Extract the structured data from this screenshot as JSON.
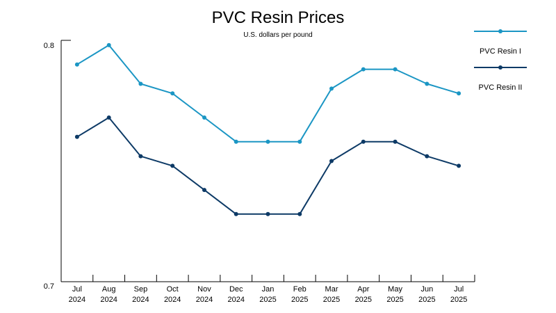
{
  "chart_data": {
    "type": "line",
    "title": "PVC Resin Prices",
    "subtitle": "U.S. dollars per pound",
    "xlabel": "",
    "ylabel": "",
    "categories": [
      [
        "Jul",
        "2024"
      ],
      [
        "Aug",
        "2024"
      ],
      [
        "Sep",
        "2024"
      ],
      [
        "Oct",
        "2024"
      ],
      [
        "Nov",
        "2024"
      ],
      [
        "Dec",
        "2024"
      ],
      [
        "Jan",
        "2025"
      ],
      [
        "Feb",
        "2025"
      ],
      [
        "Mar",
        "2025"
      ],
      [
        "Apr",
        "2025"
      ],
      [
        "May",
        "2025"
      ],
      [
        "Jun",
        "2025"
      ],
      [
        "Jul",
        "2025"
      ]
    ],
    "ylim": [
      0.7,
      0.8
    ],
    "yticks": [
      "0.7",
      "0.8"
    ],
    "grid": false,
    "legend_position": "right",
    "series": [
      {
        "name": "PVC Resin I",
        "color": "#1b96c4",
        "values": [
          0.79,
          0.798,
          0.782,
          0.778,
          0.768,
          0.758,
          0.758,
          0.758,
          0.78,
          0.788,
          0.788,
          0.782,
          0.778
        ]
      },
      {
        "name": "PVC Resin II",
        "color": "#0d3a66",
        "values": [
          0.76,
          0.768,
          0.752,
          0.748,
          0.738,
          0.728,
          0.728,
          0.728,
          0.75,
          0.758,
          0.758,
          0.752,
          0.748
        ]
      }
    ]
  }
}
